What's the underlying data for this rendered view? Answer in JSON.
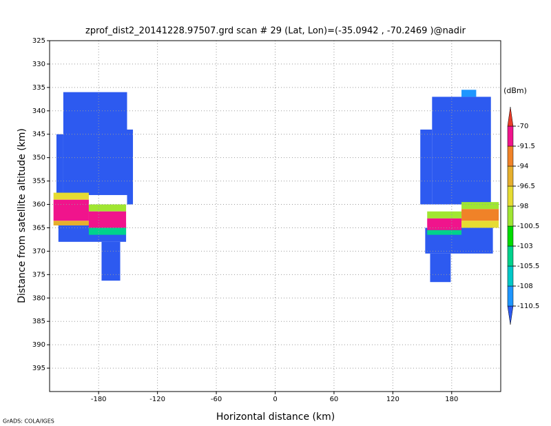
{
  "chart_data": {
    "type": "heatmap",
    "title": "zprof_dist2_20141228.97507.grd  scan # 29  (Lat, Lon)=(-35.0942 , -70.2469 )@nadir",
    "x_label": "Horizontal distance (km)",
    "y_label": "Distance from satellite altitude (km)",
    "xlim": [
      -230,
      230
    ],
    "ylim": [
      325,
      400
    ],
    "y_reversed": true,
    "xticks": [
      -180,
      -120,
      -60,
      0,
      60,
      120,
      180
    ],
    "yticks": [
      325,
      330,
      335,
      340,
      345,
      350,
      355,
      360,
      365,
      370,
      375,
      380,
      385,
      390,
      395
    ],
    "grid": true,
    "colorbar": {
      "unit": "(dBm)",
      "levels": [
        -110.5,
        -108,
        -105.5,
        -103,
        -100.5,
        -98,
        -96.5,
        -94,
        -91.5,
        -70
      ],
      "colors": [
        "#2d5af0",
        "#1e96ff",
        "#00c8c8",
        "#00d28c",
        "#00dc00",
        "#a0e632",
        "#e6dc32",
        "#e6af2d",
        "#f08228",
        "#f0148c",
        "#e83c28"
      ]
    },
    "cells": [
      {
        "x": [
          -216,
          -151
        ],
        "y": [
          336,
          358
        ],
        "value": -115
      },
      {
        "x": [
          -151,
          -145
        ],
        "y": [
          344,
          360
        ],
        "value": -115
      },
      {
        "x": [
          -223,
          -216
        ],
        "y": [
          345,
          358
        ],
        "value": -115
      },
      {
        "x": [
          -221,
          -152
        ],
        "y": [
          364,
          368
        ],
        "value": -115
      },
      {
        "x": [
          -177,
          -158
        ],
        "y": [
          368,
          376.3
        ],
        "value": -115
      },
      {
        "x": [
          148,
          160
        ],
        "y": [
          344,
          360
        ],
        "value": -115
      },
      {
        "x": [
          160,
          220
        ],
        "y": [
          337,
          360
        ],
        "value": -115
      },
      {
        "x": [
          190,
          205
        ],
        "y": [
          335.5,
          337
        ],
        "value": -109
      },
      {
        "x": [
          153,
          222
        ],
        "y": [
          365,
          370.5
        ],
        "value": -115
      },
      {
        "x": [
          158,
          179
        ],
        "y": [
          370.5,
          376.6
        ],
        "value": -115
      },
      {
        "x": [
          -226,
          -190
        ],
        "y": [
          357.5,
          359
        ],
        "value": -97
      },
      {
        "x": [
          -226,
          -190
        ],
        "y": [
          359,
          363.5
        ],
        "value": -88
      },
      {
        "x": [
          -226,
          -190
        ],
        "y": [
          363.5,
          364.5
        ],
        "value": -95
      },
      {
        "x": [
          -190,
          -152
        ],
        "y": [
          360,
          361.5
        ],
        "value": -99
      },
      {
        "x": [
          -190,
          -152
        ],
        "y": [
          361.5,
          365
        ],
        "value": -89
      },
      {
        "x": [
          -190,
          -152
        ],
        "y": [
          365,
          366.5
        ],
        "value": -104
      },
      {
        "x": [
          155,
          190
        ],
        "y": [
          361.5,
          363
        ],
        "value": -99
      },
      {
        "x": [
          155,
          190
        ],
        "y": [
          363,
          365.5
        ],
        "value": -89
      },
      {
        "x": [
          155,
          190
        ],
        "y": [
          365.5,
          366.5
        ],
        "value": -104
      },
      {
        "x": [
          190,
          228
        ],
        "y": [
          359.5,
          361
        ],
        "value": -100
      },
      {
        "x": [
          190,
          228
        ],
        "y": [
          361,
          363.5
        ],
        "value": -93
      },
      {
        "x": [
          190,
          228
        ],
        "y": [
          363.5,
          365
        ],
        "value": -98
      }
    ]
  },
  "footer": "GrADS: COLA/IGES"
}
